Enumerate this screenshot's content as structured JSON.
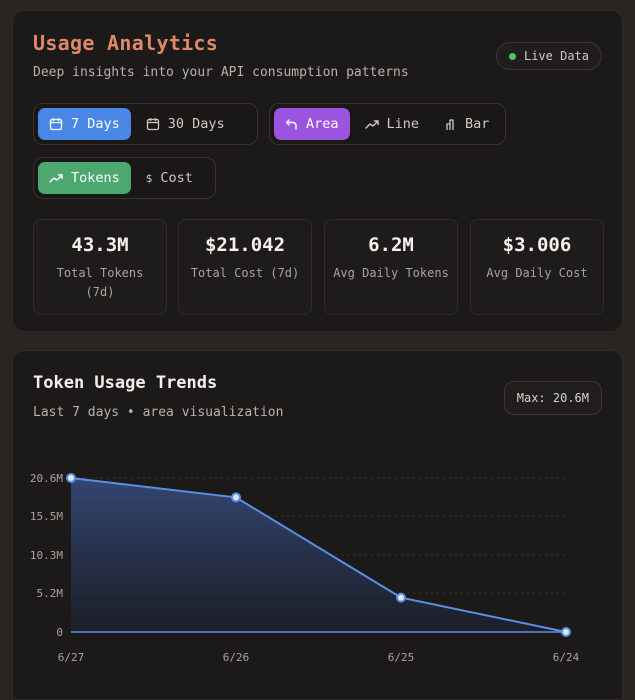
{
  "header": {
    "title": "Usage Analytics",
    "subtitle": "Deep insights into your API consumption patterns",
    "live_label": "Live Data"
  },
  "controls": {
    "range": [
      {
        "label": "7 Days",
        "icon": "calendar-icon",
        "active": true
      },
      {
        "label": "30 Days",
        "icon": "calendar-icon",
        "active": false
      }
    ],
    "chart_type": [
      {
        "label": "Area",
        "icon": "area-icon",
        "active": true
      },
      {
        "label": "Line",
        "icon": "trend-line-icon",
        "active": false
      },
      {
        "label": "Bar",
        "icon": "bar-chart-icon",
        "active": false
      }
    ],
    "metric": [
      {
        "label": "Tokens",
        "icon": "trending-up-icon",
        "active": true
      },
      {
        "label": "Cost",
        "icon": "dollar-icon",
        "active": false
      }
    ]
  },
  "stats": [
    {
      "value": "43.3M",
      "label": "Total Tokens (7d)"
    },
    {
      "value": "$21.042",
      "label": "Total Cost (7d)"
    },
    {
      "value": "6.2M",
      "label": "Avg Daily Tokens"
    },
    {
      "value": "$3.006",
      "label": "Avg Daily Cost"
    }
  ],
  "chart_panel": {
    "title": "Token Usage Trends",
    "subtitle": "Last 7 days • area visualization",
    "max_label": "Max: 20.6M"
  },
  "colors": {
    "accent_title": "#e0876a",
    "blue": "#4a86e6",
    "purple": "#9a54e0",
    "green": "#4ca86f",
    "live": "#4ec36a",
    "line": "#5b8ee6"
  },
  "chart_data": {
    "type": "area",
    "title": "Token Usage Trends",
    "categories": [
      "6/27",
      "6/26",
      "6/25",
      "6/24"
    ],
    "values": [
      20.6,
      18.0,
      4.6,
      0
    ],
    "unit": "M",
    "y_ticks": [
      "0",
      "5.2M",
      "10.3M",
      "15.5M",
      "20.6M"
    ],
    "y_tick_values": [
      0,
      5.2,
      10.3,
      15.5,
      20.6
    ],
    "ylim": [
      0,
      20.6
    ],
    "grid": true,
    "xlabel": "",
    "ylabel": ""
  }
}
